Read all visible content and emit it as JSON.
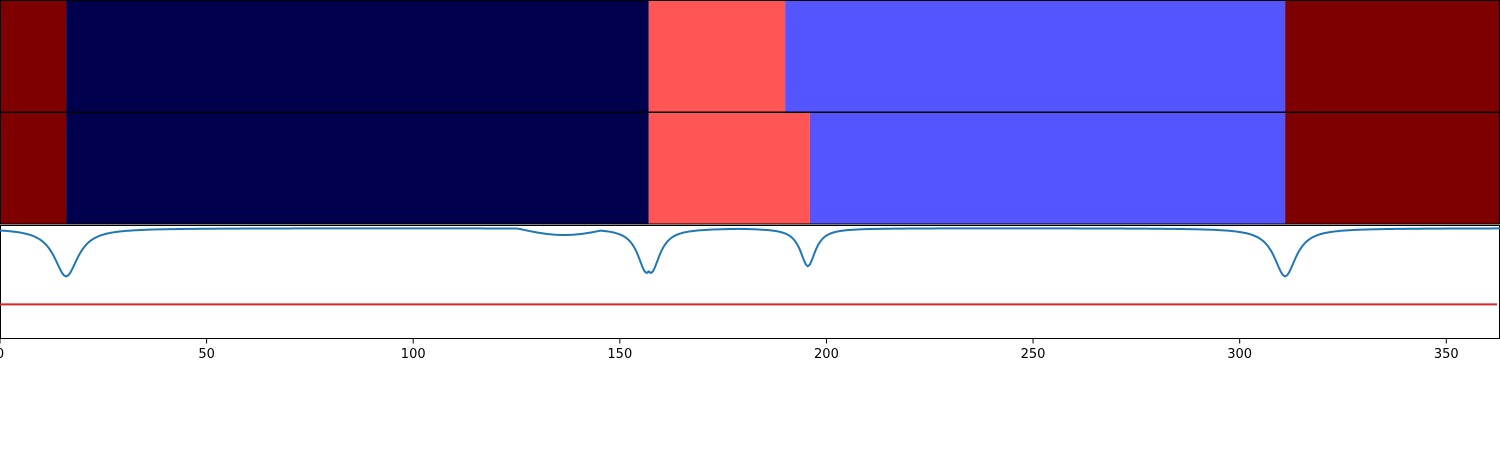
{
  "chart_data": {
    "type": "heatmap",
    "title": "",
    "xlabel": "",
    "ylabel": "",
    "xlim": [
      0,
      363
    ],
    "grid": false,
    "x_ticks": [
      0,
      50,
      100,
      150,
      200,
      250,
      300,
      350
    ],
    "x_tick_labels": [
      "0",
      "50",
      "100",
      "150",
      "200",
      "250",
      "300",
      "350"
    ],
    "segmentation_rows": [
      {
        "segments": [
          {
            "start": 0,
            "end": 16,
            "color": "#7f0000"
          },
          {
            "start": 16,
            "end": 157,
            "color": "#00004c"
          },
          {
            "start": 157,
            "end": 190,
            "color": "#ff5555"
          },
          {
            "start": 190,
            "end": 311,
            "color": "#5555ff"
          },
          {
            "start": 311,
            "end": 363,
            "color": "#7f0000"
          }
        ]
      },
      {
        "segments": [
          {
            "start": 0,
            "end": 16,
            "color": "#7f0000"
          },
          {
            "start": 16,
            "end": 157,
            "color": "#00004c"
          },
          {
            "start": 157,
            "end": 196,
            "color": "#ff5555"
          },
          {
            "start": 196,
            "end": 311,
            "color": "#5555ff"
          },
          {
            "start": 311,
            "end": 363,
            "color": "#7f0000"
          }
        ]
      }
    ],
    "score_panel": {
      "ylim": [
        0,
        1
      ],
      "threshold": 0.3,
      "threshold_color": "#d62728",
      "line_color": "#1f77b4",
      "baseline": 0.98,
      "dips": [
        {
          "x": 16,
          "min": 0.55,
          "width": 3.5
        },
        {
          "x": 156.5,
          "min": 0.58,
          "width": 2.6
        },
        {
          "x": 157.5,
          "min": 0.58,
          "width": 2.6
        },
        {
          "x": 195.5,
          "min": 0.64,
          "width": 2.2
        },
        {
          "x": 311,
          "min": 0.55,
          "width": 3.2
        }
      ],
      "shallow": [
        {
          "start": 125,
          "end": 148,
          "level": 0.92
        }
      ]
    }
  }
}
